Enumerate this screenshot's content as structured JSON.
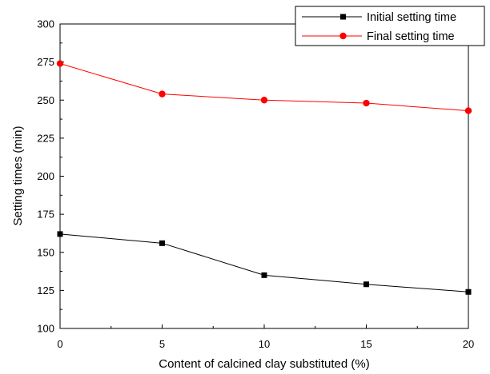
{
  "chart_data": {
    "type": "line",
    "title": "",
    "xlabel": "Content of calcined clay substituted (%)",
    "ylabel": "Setting times (min)",
    "x": [
      0,
      5,
      10,
      15,
      20
    ],
    "xlim": [
      0,
      20
    ],
    "ylim": [
      100,
      300
    ],
    "xticks": [
      0,
      5,
      10,
      15,
      20
    ],
    "xtick_labels": [
      "0",
      "5",
      "10",
      "15",
      "20"
    ],
    "yticks": [
      100,
      125,
      150,
      175,
      200,
      225,
      250,
      275,
      300
    ],
    "ytick_labels": [
      "100",
      "125",
      "150",
      "175",
      "200",
      "225",
      "250",
      "275",
      "300"
    ],
    "grid": false,
    "legend_position": "top-right",
    "series": [
      {
        "name": "Initial setting time",
        "values": [
          162,
          156,
          135,
          129,
          124
        ],
        "color": "#000000",
        "marker": "square"
      },
      {
        "name": "Final setting time",
        "values": [
          274,
          254,
          250,
          248,
          243
        ],
        "color": "#ff0000",
        "marker": "circle"
      }
    ]
  }
}
